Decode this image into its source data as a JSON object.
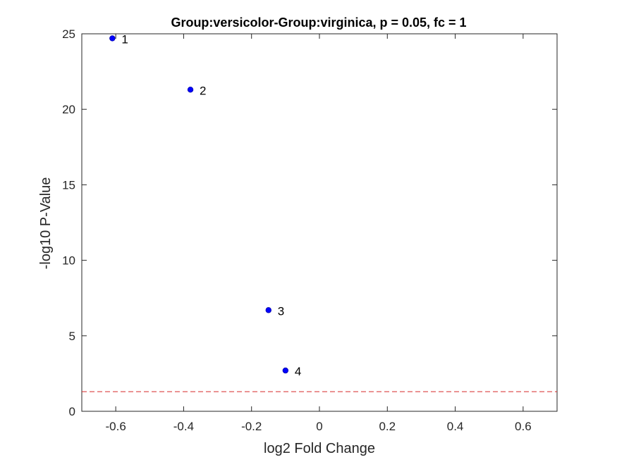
{
  "chart_data": {
    "type": "scatter",
    "title": "Group:versicolor-Group:virginica, p = 0.05, fc = 1",
    "xlabel": "log2 Fold Change",
    "ylabel": "-log10 P-Value",
    "xlim": [
      -0.7,
      0.7
    ],
    "ylim": [
      0,
      25
    ],
    "xticks": [
      -0.6,
      -0.4,
      -0.2,
      0,
      0.2,
      0.4,
      0.6
    ],
    "xtick_labels": [
      "-0.6",
      "-0.4",
      "-0.2",
      "0",
      "0.2",
      "0.4",
      "0.6"
    ],
    "yticks": [
      0,
      5,
      10,
      15,
      20,
      25
    ],
    "ytick_labels": [
      "0",
      "5",
      "10",
      "15",
      "20",
      "25"
    ],
    "grid": false,
    "points": [
      {
        "x": -0.61,
        "y": 24.7,
        "label": "1"
      },
      {
        "x": -0.38,
        "y": 21.3,
        "label": "2"
      },
      {
        "x": -0.15,
        "y": 6.7,
        "label": "3"
      },
      {
        "x": -0.1,
        "y": 2.7,
        "label": "4"
      }
    ],
    "threshold_line": {
      "y": 1.301,
      "style": "dashed"
    },
    "colors": {
      "points": "#0000ff",
      "threshold": "#d62728",
      "axes": "#262626"
    }
  }
}
